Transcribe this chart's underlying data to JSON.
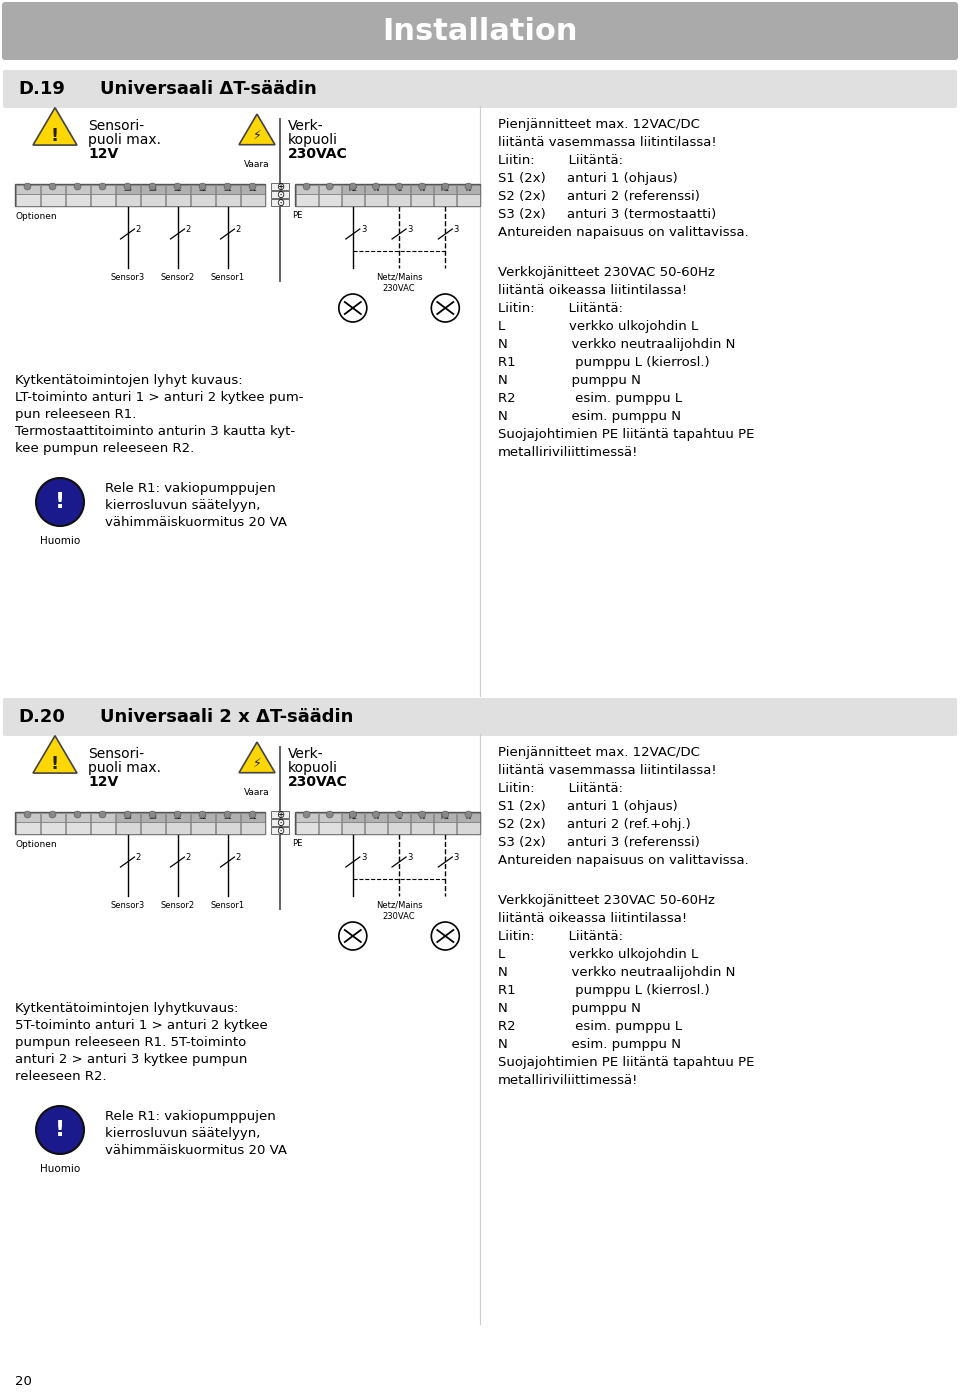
{
  "title": "Installation",
  "title_bg": "#aaaaaa",
  "title_color": "#ffffff",
  "page_bg": "#ffffff",
  "sec1_header_d": "D.19",
  "sec1_header_text": "Universaali ΔT-säädin",
  "sec2_header_d": "D.20",
  "sec2_header_text": "Universaali 2 x ΔT-säädin",
  "header_bg": "#e0e0e0",
  "col_split": 0.5,
  "sensor_label_lines": [
    "Sensori-",
    "puoli max.",
    "12V"
  ],
  "verk_label_lines": [
    "Verk-",
    "kopuoli",
    "230VAC"
  ],
  "vaara_text": "Vaara",
  "optionen_text": "Optionen",
  "labels_left": [
    "",
    "",
    "",
    "",
    "S3",
    "S3",
    "S2",
    "S2",
    "S1",
    "S1"
  ],
  "labels_right": [
    "",
    "",
    "R2",
    "N",
    "L",
    "N",
    "R1",
    "N"
  ],
  "sensor_labels": [
    "Sensor3",
    "Sensor2",
    "Sensor1"
  ],
  "netz_lines": [
    "Netz/Mains",
    "230VAC"
  ],
  "wire_num_left": "2",
  "wire_num_right": "3",
  "pe_label": "PE",
  "sec1_desc_lines": [
    "Kytkentätoimintojen lyhyt kuvaus:",
    "LT-toiminto anturi 1 > anturi 2 kytkee pum-",
    "pun releeseen R1.",
    "Termostaattitoiminto anturin 3 kautta kyt-",
    "kee pumpun releeseen R2."
  ],
  "sec2_desc_lines": [
    "Kytkentätoimintojen lyhytkuvaus:",
    "5T-toiminto anturi 1 > anturi 2 kytkee",
    "pumpun releeseen R1. 5T-toiminto",
    "anturi 2 > anturi 3 kytkee pumpun",
    "releeseen R2."
  ],
  "note_lines": [
    "Rele R1: vakiopumppujen",
    "kierrosluvun säätelyyn,",
    "vähimmäiskuormitus 20 VA"
  ],
  "huomio_text": "Huomio",
  "huomio_color": "#1a1a8c",
  "sec1_right_top": [
    "Pienjännitteet max. 12VAC/DC",
    "liitäntä vasemmassa liitintilassa!",
    "Liitin:        Liitäntä:",
    "S1 (2x)     anturi 1 (ohjaus)",
    "S2 (2x)     anturi 2 (referenssi)",
    "S3 (2x)     anturi 3 (termostaatti)",
    "Antureiden napaisuus on valittavissa."
  ],
  "sec1_right_bottom": [
    "Verkkojänitteet 230VAC 50-60Hz",
    "liitäntä oikeassa liitintilassa!",
    "Liitin:        Liitäntä:",
    "L               verkko ulkojohdin L",
    "N               verkko neutraalijohdin N",
    "R1              pumppu L (kierrosl.)",
    "N               pumppu N",
    "R2              esim. pumppu L",
    "N               esim. pumppu N",
    "Suojajohtimien PE liitäntä tapahtuu PE",
    "metalliriviliittimessä!"
  ],
  "sec2_right_top": [
    "Pienjännitteet max. 12VAC/DC",
    "liitäntä vasemmassa liitintilassa!",
    "Liitin:        Liitäntä:",
    "S1 (2x)     anturi 1 (ohjaus)",
    "S2 (2x)     anturi 2 (ref.+ohj.)",
    "S3 (2x)     anturi 3 (referenssi)",
    "Antureiden napaisuus on valittavissa."
  ],
  "sec2_right_bottom": [
    "Verkkojänitteet 230VAC 50-60Hz",
    "liitäntä oikeassa liitintilassa!",
    "Liitin:        Liitäntä:",
    "L               verkko ulkojohdin L",
    "N               verkko neutraalijohdin N",
    "R1              pumppu L (kierrosl.)",
    "N               pumppu N",
    "R2              esim. pumppu L",
    "N               esim. pumppu N",
    "Suojajohtimien PE liitäntä tapahtuu PE",
    "metalliriviliittimessä!"
  ],
  "footer_text": "20"
}
